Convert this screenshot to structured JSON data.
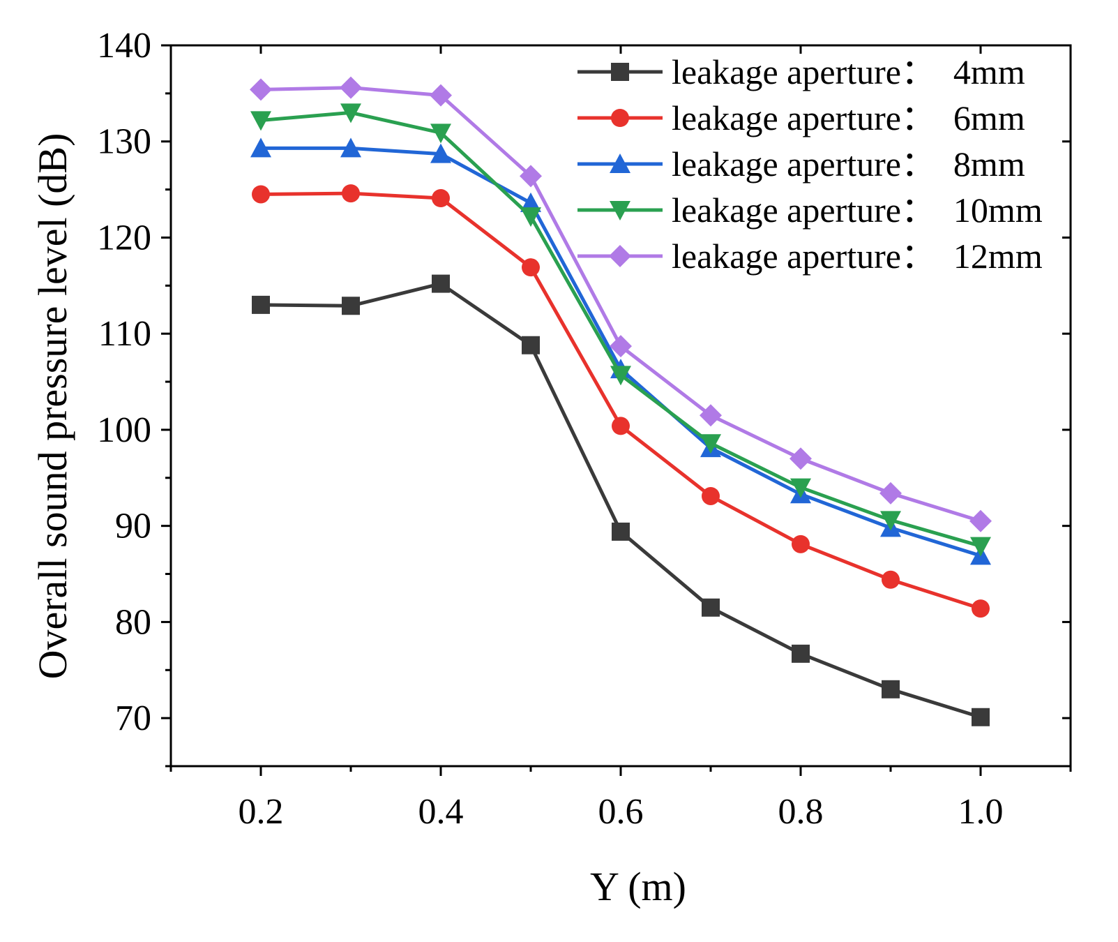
{
  "chart_data": {
    "type": "line",
    "title": "",
    "xlabel": "Y (m)",
    "ylabel": "Overall sound pressure level (dB)",
    "xlim": [
      0.1,
      1.1
    ],
    "ylim": [
      65,
      140
    ],
    "xticks": [
      "0.2",
      "0.4",
      "0.6",
      "0.8",
      "1.0"
    ],
    "yticks": [
      "70",
      "80",
      "90",
      "100",
      "110",
      "120",
      "130",
      "140"
    ],
    "grid": false,
    "legend_position": "top-right",
    "x": [
      0.2,
      0.3,
      0.4,
      0.5,
      0.6,
      0.7,
      0.8,
      0.9,
      1.0
    ],
    "series": [
      {
        "name": "leakage aperture：  4mm",
        "color": "#3a3a3a",
        "marker": "square",
        "values": [
          113.0,
          112.9,
          115.2,
          108.8,
          89.4,
          81.5,
          76.7,
          73.0,
          70.1
        ]
      },
      {
        "name": "leakage aperture：  6mm",
        "color": "#e8322c",
        "marker": "circle",
        "values": [
          124.5,
          124.6,
          124.1,
          116.9,
          100.4,
          93.1,
          88.1,
          84.4,
          81.4
        ]
      },
      {
        "name": "leakage aperture：  8mm",
        "color": "#2166d6",
        "marker": "triangle-up",
        "values": [
          129.3,
          129.3,
          128.7,
          123.6,
          106.3,
          98.1,
          93.3,
          89.8,
          86.9
        ]
      },
      {
        "name": "leakage aperture：  10mm",
        "color": "#2aa050",
        "marker": "triangle-down",
        "values": [
          132.2,
          133.0,
          130.9,
          122.2,
          105.7,
          98.6,
          94.0,
          90.6,
          87.9
        ]
      },
      {
        "name": "leakage aperture：  12mm",
        "color": "#b07ae6",
        "marker": "diamond",
        "values": [
          135.4,
          135.6,
          134.8,
          126.4,
          108.7,
          101.5,
          97.0,
          93.4,
          90.5
        ]
      }
    ]
  }
}
